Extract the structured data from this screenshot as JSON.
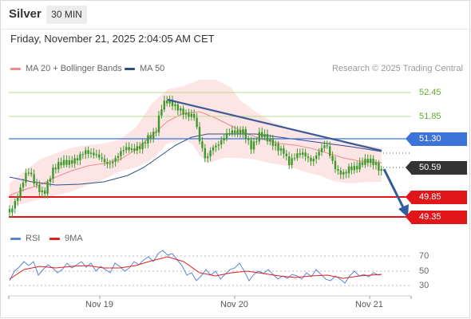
{
  "header": {
    "instrument": "Silver",
    "timeframe": "30 MIN",
    "datetime": "Friday, November 21, 2025 2:04:05 AM CET"
  },
  "legend": {
    "items": [
      {
        "label": "MA 20 + Bollinger Bands",
        "color": "#f08a8a"
      },
      {
        "label": "MA 50",
        "color": "#2c4f8a"
      }
    ],
    "copyright": "Research © 2025 Trading Central"
  },
  "levels": {
    "resistance_2": "52.45",
    "resistance_1": "51.85",
    "pivot": "51.30",
    "last_price": "50.59",
    "support_1": "49.85",
    "support_2": "49.35"
  },
  "rsi_legend": {
    "items": [
      {
        "label": "RSI",
        "color": "#5b84d6"
      },
      {
        "label": "9MA",
        "color": "#e02020"
      }
    ]
  },
  "rsi_ticks": [
    "70",
    "50",
    "30"
  ],
  "x_labels": [
    "Nov 19",
    "Nov 20",
    "Nov 21"
  ],
  "colors": {
    "resistance": "#9acd6a",
    "pivot": "#3b73d9",
    "support": "#e0161a",
    "candle": "#3c9a2a",
    "band_fill": "#fde2e2",
    "arrow": "#2f5d9e",
    "last_price_bg": "#333333"
  },
  "chart_data": {
    "type": "candlestick",
    "y_range": [
      49.35,
      52.6
    ],
    "trendline": {
      "from_time": "Nov 19 ~12:00",
      "from_value": 52.45,
      "to_time": "Nov 21 ~02:00",
      "to_value": 51.1
    },
    "forecast_arrow": {
      "from_value": 50.59,
      "to_value": 49.35
    }
  }
}
